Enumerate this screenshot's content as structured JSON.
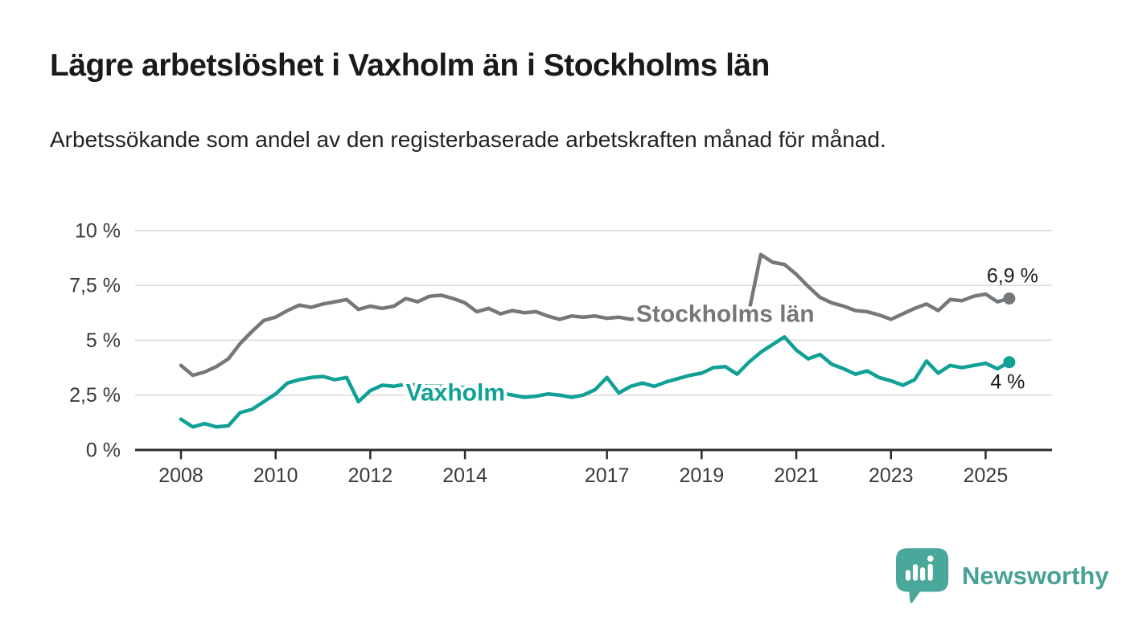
{
  "title": "Lägre arbetslöshet i Vaxholm än i Stockholms län",
  "subtitle": "Arbetssökande som andel av den registerbaserade arbetskraften månad för månad.",
  "footer": {
    "brand": "Newsworthy",
    "logo_icon": "newsworthy-bubble-chart-icon",
    "brand_color": "#47a296"
  },
  "chart_data": {
    "type": "line",
    "unit": "%",
    "grid": true,
    "ylim": [
      0,
      10
    ],
    "x_start": 2008.0,
    "x_step": 0.25,
    "x_end": 2025.5,
    "yticks": {
      "values": [
        0,
        2.5,
        5,
        7.5,
        10
      ],
      "labels": [
        "0 %",
        "2,5 %",
        "5 %",
        "7,5 %",
        "10 %"
      ]
    },
    "xticks": {
      "values": [
        2008,
        2010,
        2012,
        2014,
        2017,
        2019,
        2021,
        2023,
        2025
      ],
      "labels": [
        "2008",
        "2010",
        "2012",
        "2014",
        "2017",
        "2019",
        "2021",
        "2023",
        "2025"
      ]
    },
    "series": [
      {
        "name": "Stockholms län",
        "color": "#75787b",
        "end_label": "6,9 %",
        "end_value": 6.9,
        "label_anchor": {
          "year": 2019.5,
          "value": 6.2
        },
        "values": [
          3.85,
          3.4,
          3.55,
          3.8,
          4.15,
          4.85,
          5.4,
          5.9,
          6.05,
          6.35,
          6.6,
          6.5,
          6.65,
          6.75,
          6.85,
          6.4,
          6.55,
          6.45,
          6.55,
          6.9,
          6.75,
          7.0,
          7.05,
          6.9,
          6.7,
          6.3,
          6.45,
          6.2,
          6.35,
          6.25,
          6.3,
          6.1,
          5.95,
          6.1,
          6.05,
          6.1,
          6.0,
          6.05,
          5.95,
          6.05,
          6.1,
          6.0,
          5.95,
          6.0,
          5.9,
          5.95,
          5.9,
          6.0,
          6.3,
          8.9,
          8.55,
          8.45,
          8.0,
          7.45,
          6.95,
          6.7,
          6.55,
          6.35,
          6.3,
          6.15,
          5.95,
          6.2,
          6.45,
          6.65,
          6.35,
          6.85,
          6.8,
          7.0,
          7.1,
          6.75,
          6.9
        ]
      },
      {
        "name": "Vaxholm",
        "color": "#10a096",
        "end_label": "4 %",
        "end_value": 4.0,
        "label_anchor": {
          "year": 2013.8,
          "value": 2.62
        },
        "values": [
          1.4,
          1.05,
          1.2,
          1.05,
          1.1,
          1.7,
          1.85,
          2.2,
          2.55,
          3.05,
          3.2,
          3.3,
          3.35,
          3.2,
          3.3,
          2.2,
          2.7,
          2.95,
          2.9,
          3.0,
          2.95,
          2.9,
          2.9,
          2.85,
          2.85,
          2.8,
          2.7,
          2.6,
          2.5,
          2.4,
          2.45,
          2.55,
          2.5,
          2.4,
          2.5,
          2.75,
          3.3,
          2.6,
          2.9,
          3.05,
          2.9,
          3.1,
          3.25,
          3.4,
          3.5,
          3.75,
          3.8,
          3.45,
          4.0,
          4.45,
          4.8,
          5.15,
          4.55,
          4.15,
          4.35,
          3.9,
          3.7,
          3.45,
          3.6,
          3.3,
          3.15,
          2.95,
          3.2,
          4.05,
          3.5,
          3.85,
          3.75,
          3.85,
          3.95,
          3.7,
          4.0
        ]
      }
    ]
  }
}
